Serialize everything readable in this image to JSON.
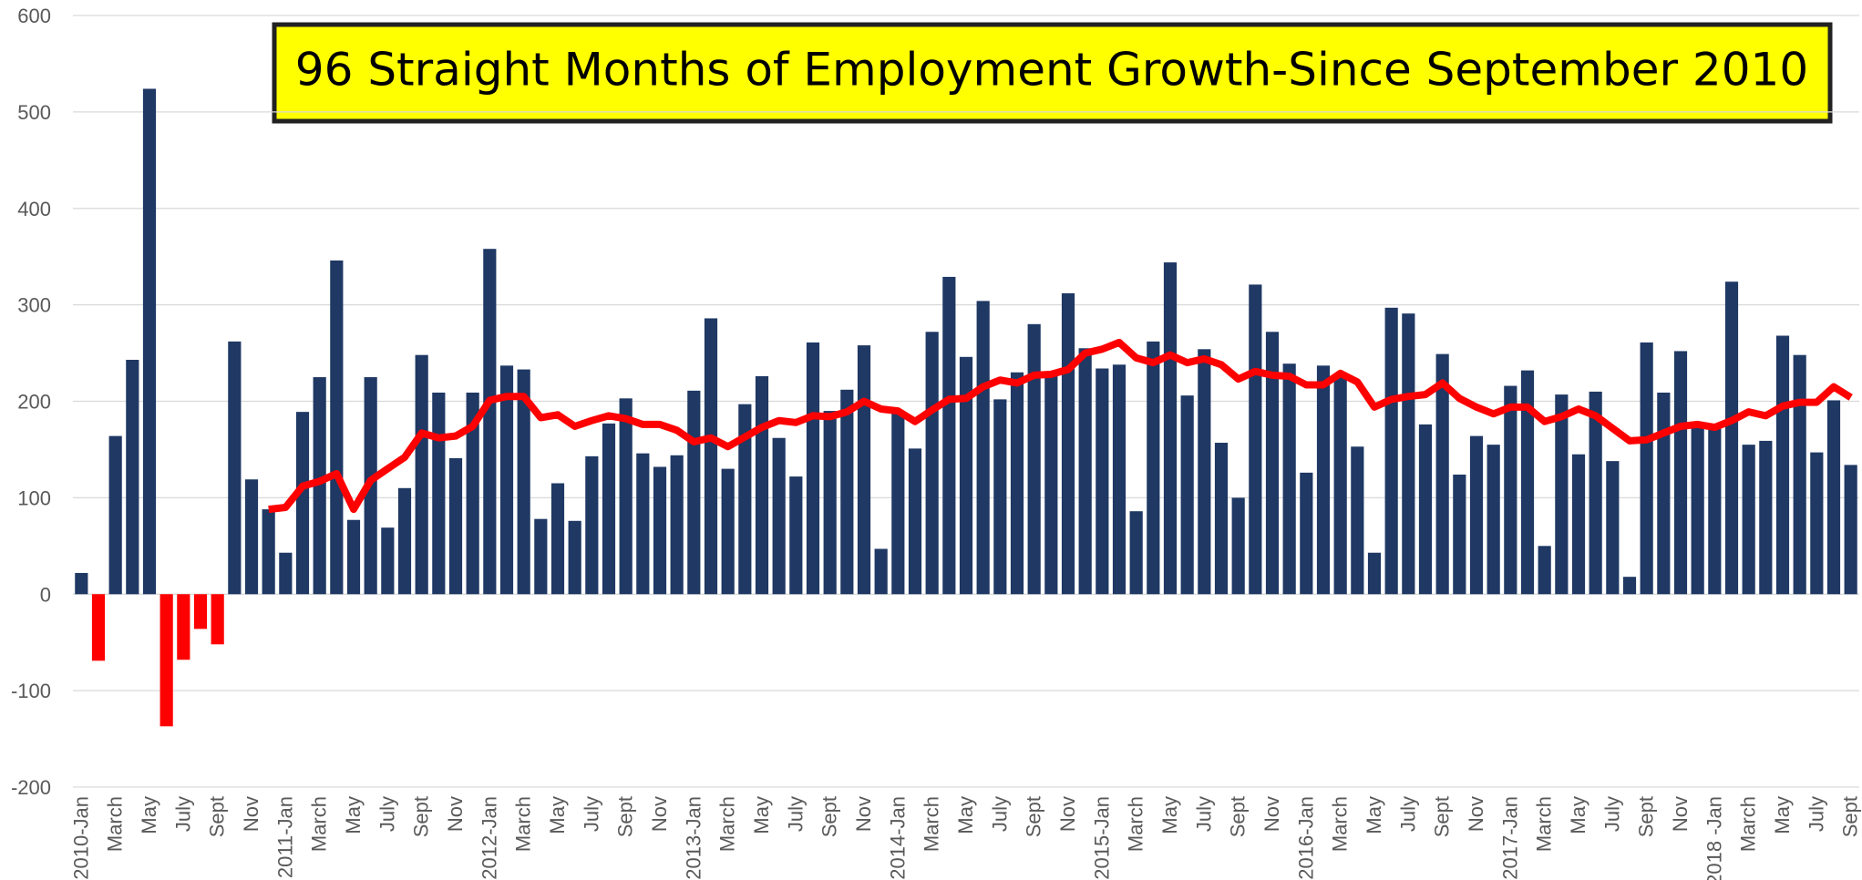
{
  "chart_data": {
    "type": "bar",
    "title": "96 Straight Months of Employment Growth-Since September 2010",
    "categories": [
      "2010-Jan",
      null,
      "March",
      null,
      "May",
      null,
      "July",
      null,
      "Sept",
      null,
      "Nov",
      null,
      "2011-Jan",
      null,
      "March",
      null,
      "May",
      null,
      "July",
      null,
      "Sept",
      null,
      "Nov",
      null,
      "2012-Jan",
      null,
      "March",
      null,
      "May",
      null,
      "July",
      null,
      "Sept",
      null,
      "Nov",
      null,
      "2013-Jan",
      null,
      "March",
      null,
      "May",
      null,
      "July",
      null,
      "Sept",
      null,
      "Nov",
      null,
      "2014-Jan",
      null,
      "March",
      null,
      "May",
      null,
      "July",
      null,
      "Sept",
      null,
      "Nov",
      null,
      "2015-Jan",
      null,
      "March",
      null,
      "May",
      null,
      "July",
      null,
      "Sept",
      null,
      "Nov",
      null,
      "2016-Jan",
      null,
      "March",
      null,
      "May",
      null,
      "July",
      null,
      "Sept",
      null,
      "Nov",
      null,
      "2017-Jan",
      null,
      "March",
      null,
      "May",
      null,
      "July",
      null,
      "Sept",
      null,
      "Nov",
      null,
      "2018 -Jan",
      null,
      "March",
      null,
      "May",
      null,
      "July",
      null,
      "Sept"
    ],
    "series": [
      {
        "type": "bar",
        "color": "#1f3864",
        "negative_color": "#ff0000",
        "values": [
          22,
          -69,
          164,
          243,
          524,
          -137,
          -68,
          -36,
          -52,
          262,
          119,
          88,
          43,
          189,
          225,
          346,
          77,
          225,
          69,
          110,
          248,
          209,
          141,
          209,
          358,
          237,
          233,
          78,
          115,
          76,
          143,
          177,
          203,
          146,
          132,
          144,
          211,
          286,
          130,
          197,
          226,
          162,
          122,
          261,
          190,
          212,
          258,
          47,
          190,
          151,
          272,
          329,
          246,
          304,
          202,
          230,
          280,
          227,
          312,
          255,
          234,
          238,
          86,
          262,
          344,
          206,
          254,
          157,
          100,
          321,
          272,
          239,
          126,
          237,
          225,
          153,
          43,
          297,
          291,
          176,
          249,
          124,
          164,
          155,
          216,
          232,
          50,
          207,
          145,
          210,
          138,
          18,
          261,
          209,
          252,
          175,
          176,
          324,
          155,
          159,
          268,
          248,
          147,
          201,
          134
        ]
      },
      {
        "type": "line",
        "color": "#ff0000",
        "values": [
          null,
          null,
          null,
          null,
          null,
          null,
          null,
          null,
          null,
          null,
          null,
          88,
          90,
          112,
          117,
          125,
          88,
          118,
          130,
          142,
          167,
          162,
          164,
          174,
          201,
          205,
          205,
          183,
          186,
          174,
          180,
          185,
          182,
          176,
          176,
          170,
          158,
          162,
          153,
          163,
          173,
          180,
          178,
          185,
          184,
          189,
          200,
          192,
          190,
          179,
          191,
          202,
          203,
          215,
          222,
          219,
          227,
          228,
          233,
          250,
          254,
          261,
          245,
          240,
          248,
          240,
          244,
          238,
          223,
          231,
          227,
          226,
          217,
          217,
          229,
          220,
          194,
          202,
          205,
          207,
          219,
          203,
          194,
          187,
          194,
          194,
          179,
          184,
          192,
          185,
          172,
          159,
          160,
          167,
          174,
          176,
          173,
          180,
          189,
          185,
          195,
          199,
          199,
          215,
          204
        ]
      }
    ],
    "ylim": [
      -200,
      600
    ],
    "yticks": [
      -200,
      -100,
      0,
      100,
      200,
      300,
      400,
      500,
      600
    ],
    "grid": true
  }
}
